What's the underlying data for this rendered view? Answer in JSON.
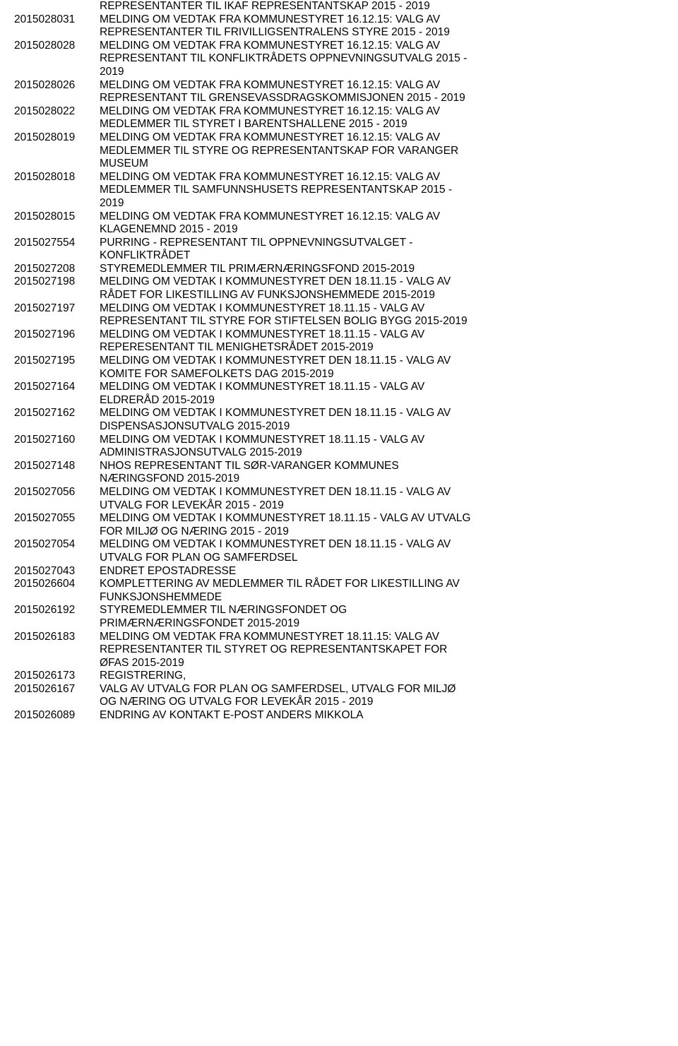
{
  "rows": [
    {
      "id": "",
      "lines": [
        "REPRESENTANTER TIL IKAF REPRESENTANTSKAP 2015 - 2019"
      ]
    },
    {
      "id": "2015028031",
      "lines": [
        "MELDING OM VEDTAK FRA KOMMUNESTYRET 16.12.15: VALG AV",
        "REPRESENTANTER TIL FRIVILLIGSENTRALENS STYRE 2015 - 2019"
      ]
    },
    {
      "id": "2015028028",
      "lines": [
        "MELDING OM VEDTAK FRA KOMMUNESTYRET 16.12.15: VALG AV",
        "REPRESENTANT TIL KONFLIKTRÅDETS OPPNEVNINGSUTVALG 2015 -",
        "2019"
      ]
    },
    {
      "id": "2015028026",
      "lines": [
        "MELDING OM VEDTAK FRA KOMMUNESTYRET 16.12.15: VALG AV",
        "REPRESENTANT TIL GRENSEVASSDRAGSKOMMISJONEN 2015 - 2019"
      ]
    },
    {
      "id": "2015028022",
      "lines": [
        "MELDING OM VEDTAK FRA KOMMUNESTYRET 16.12.15: VALG AV",
        "MEDLEMMER TIL STYRET I BARENTSHALLENE 2015 - 2019"
      ]
    },
    {
      "id": "2015028019",
      "lines": [
        "MELDING OM VEDTAK FRA KOMMUNESTYRET 16.12.15: VALG AV",
        "MEDLEMMER TIL STYRE OG REPRESENTANTSKAP FOR VARANGER",
        "MUSEUM"
      ]
    },
    {
      "id": "2015028018",
      "lines": [
        "MELDING OM VEDTAK FRA KOMMUNESTYRET 16.12.15: VALG AV",
        "MEDLEMMER TIL SAMFUNNSHUSETS REPRESENTANTSKAP 2015 -",
        "2019"
      ]
    },
    {
      "id": "2015028015",
      "lines": [
        "MELDING OM VEDTAK FRA KOMMUNESTYRET 16.12.15: VALG AV",
        "KLAGENEMND 2015 - 2019"
      ]
    },
    {
      "id": "2015027554",
      "lines": [
        "PURRING - REPRESENTANT TIL OPPNEVNINGSUTVALGET -",
        "KONFLIKTRÅDET"
      ]
    },
    {
      "id": "2015027208",
      "lines": [
        "STYREMEDLEMMER TIL PRIMÆRNÆRINGSFOND 2015-2019"
      ]
    },
    {
      "id": "2015027198",
      "lines": [
        "MELDING OM VEDTAK I KOMMUNESTYRET DEN 18.11.15 -  VALG AV",
        "RÅDET FOR LIKESTILLING AV FUNKSJONSHEMMEDE 2015-2019"
      ]
    },
    {
      "id": "2015027197",
      "lines": [
        "MELDING OM VEDTAK I KOMMUNESTYRET 18.11.15 - VALG AV",
        "REPRESENTANT TIL STYRE FOR STIFTELSEN BOLIG BYGG  2015-2019"
      ]
    },
    {
      "id": "2015027196",
      "lines": [
        "MELDING OM VEDTAK I KOMMUNESTYRET 18.11.15 -  VALG AV",
        "REPERESENTANT TIL MENIGHETSRÅDET 2015-2019"
      ]
    },
    {
      "id": "2015027195",
      "lines": [
        "MELDING OM VEDTAK I KOMMUNESTYRET DEN 18.11.15 - VALG AV",
        "KOMITE FOR SAMEFOLKETS DAG  2015-2019"
      ]
    },
    {
      "id": "2015027164",
      "lines": [
        "MELDING OM VEDTAK I KOMMUNESTYRET 18.11.15 - VALG AV",
        "ELDRERÅD 2015-2019"
      ]
    },
    {
      "id": "2015027162",
      "lines": [
        "MELDING OM VEDTAK I KOMMUNESTYRET DEN 18.11.15 - VALG AV",
        "DISPENSASJONSUTVALG 2015-2019"
      ]
    },
    {
      "id": "2015027160",
      "lines": [
        "MELDING OM VEDTAK I KOMMUNESTYRET 18.11.15 - VALG AV",
        "ADMINISTRASJONSUTVALG 2015-2019"
      ]
    },
    {
      "id": "2015027148",
      "lines": [
        "NHOS REPRESENTANT TIL SØR-VARANGER KOMMUNES",
        "NÆRINGSFOND 2015-2019"
      ]
    },
    {
      "id": "2015027056",
      "lines": [
        "MELDING OM VEDTAK I KOMMUNESTYRET DEN 18.11.15 - VALG AV",
        "UTVALG FOR LEVEKÅR 2015 - 2019"
      ]
    },
    {
      "id": "2015027055",
      "lines": [
        "MELDING OM VEDTAK I KOMMUNESTYRET 18.11.15 - VALG AV UTVALG",
        "FOR MILJØ OG NÆRING 2015 - 2019"
      ]
    },
    {
      "id": "2015027054",
      "lines": [
        "MELDING OM VEDTAK I KOMMUNESTYRET DEN 18.11.15 -  VALG AV",
        "UTVALG FOR PLAN OG SAMFERDSEL"
      ]
    },
    {
      "id": "2015027043",
      "lines": [
        "ENDRET EPOSTADRESSE"
      ]
    },
    {
      "id": "2015026604",
      "lines": [
        "KOMPLETTERING AV MEDLEMMER TIL RÅDET FOR LIKESTILLING AV",
        "FUNKSJONSHEMMEDE"
      ]
    },
    {
      "id": "2015026192",
      "lines": [
        "STYREMEDLEMMER TIL NÆRINGSFONDET OG",
        "PRIMÆRNÆRINGSFONDET 2015-2019"
      ]
    },
    {
      "id": "2015026183",
      "lines": [
        "MELDING OM VEDTAK FRA KOMMUNESTYRET 18.11.15: VALG AV",
        "REPRESENTANTER TIL STYRET OG REPRESENTANTSKAPET FOR",
        "ØFAS 2015-2019"
      ]
    },
    {
      "id": "2015026173",
      "lines": [
        "REGISTRERING,"
      ]
    },
    {
      "id": "2015026167",
      "lines": [
        "VALG AV UTVALG FOR PLAN OG SAMFERDSEL, UTVALG FOR MILJØ",
        "OG NÆRING OG UTVALG FOR LEVEKÅR 2015 - 2019"
      ]
    },
    {
      "id": "2015026089",
      "lines": [
        "ENDRING AV KONTAKT E-POST ANDERS MIKKOLA"
      ]
    }
  ]
}
